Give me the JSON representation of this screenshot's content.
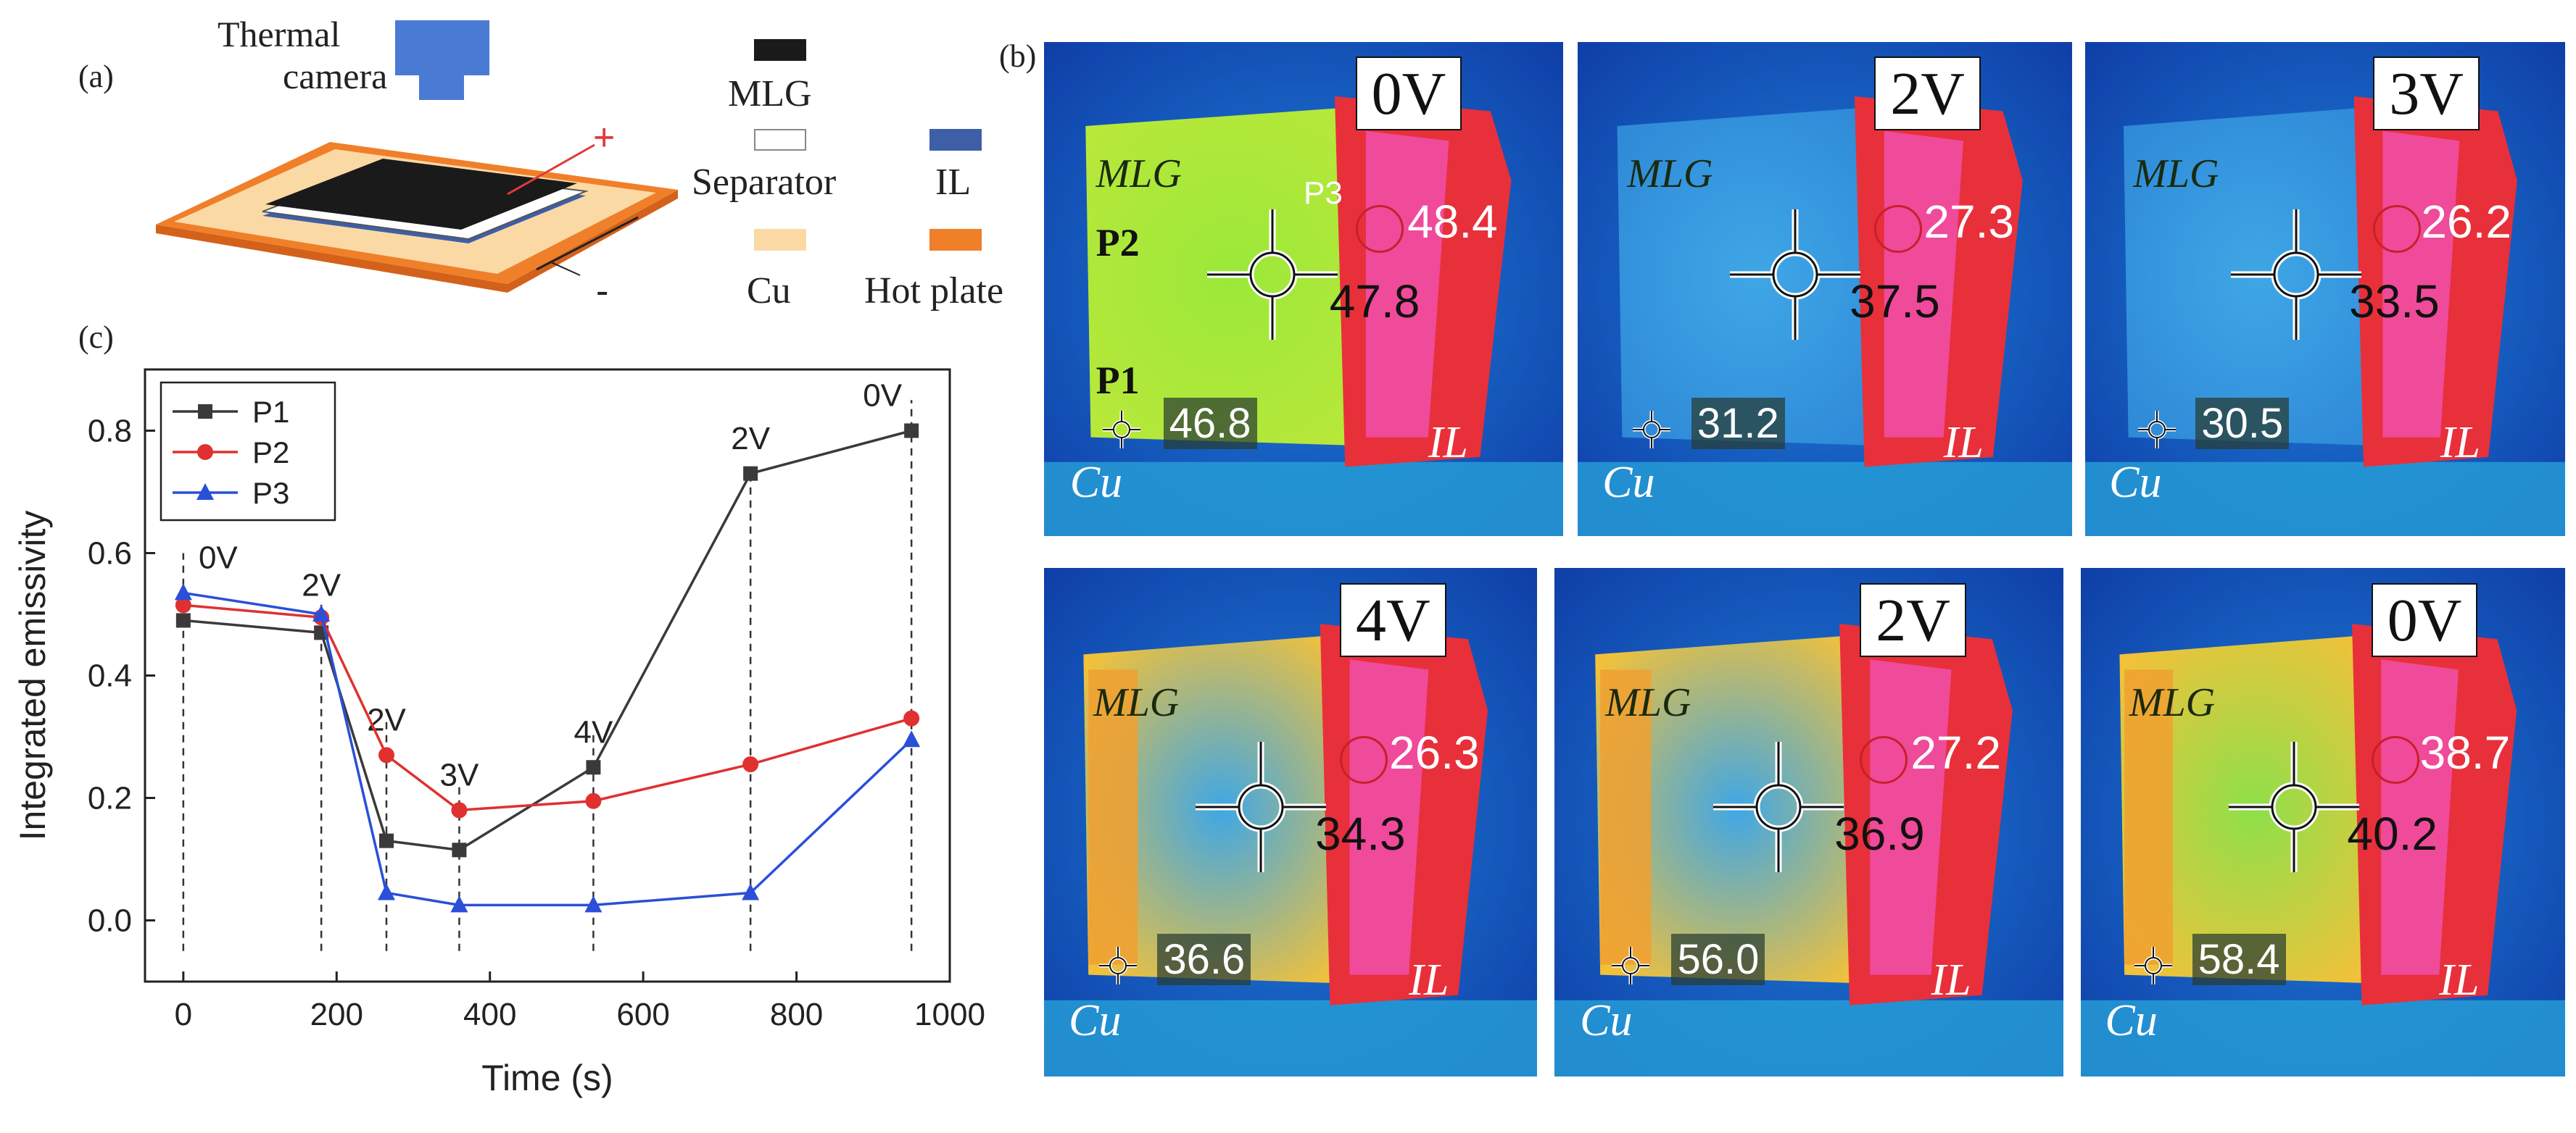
{
  "panel_a": {
    "label": "(a)",
    "camera_label_line1": "Thermal",
    "camera_label_line2": "camera",
    "plus_sign": "+",
    "minus_sign": "-",
    "legend": [
      {
        "name": "MLG",
        "color": "#1a1a1a"
      },
      {
        "name": "Separator",
        "color": "#ffffff"
      },
      {
        "name": "IL",
        "color": "#3d5fa8"
      },
      {
        "name": "Cu",
        "color": "#fbd9a5"
      },
      {
        "name": "Hot plate",
        "color": "#f07f2a"
      }
    ]
  },
  "panel_b": {
    "label": "(b)",
    "material_labels": {
      "mlg": "MLG",
      "il": "IL",
      "cu": "Cu"
    },
    "point_labels": {
      "p1": "P1",
      "p2": "P2",
      "p3": "P3"
    },
    "images": [
      {
        "voltage": "0V",
        "p3_value": "48.4",
        "p2_value": "47.8",
        "p1_value": "46.8"
      },
      {
        "voltage": "2V",
        "p3_value": "27.3",
        "p2_value": "37.5",
        "p1_value": "31.2"
      },
      {
        "voltage": "3V",
        "p3_value": "26.2",
        "p2_value": "33.5",
        "p1_value": "30.5"
      },
      {
        "voltage": "4V",
        "p3_value": "26.3",
        "p2_value": "34.3",
        "p1_value": "36.6"
      },
      {
        "voltage": "2V",
        "p3_value": "27.2",
        "p2_value": "36.9",
        "p1_value": "56.0"
      },
      {
        "voltage": "0V",
        "p3_value": "38.7",
        "p2_value": "40.2",
        "p1_value": "58.4"
      }
    ]
  },
  "panel_c": {
    "label": "(c)"
  },
  "chart_data": {
    "type": "line",
    "xlabel": "Time (s)",
    "ylabel": "Integrated emissivity",
    "xlim": [
      -50,
      1000
    ],
    "ylim": [
      -0.1,
      0.9
    ],
    "xticks": [
      0,
      200,
      400,
      600,
      800,
      1000
    ],
    "yticks": [
      0.0,
      0.2,
      0.4,
      0.6,
      0.8
    ],
    "x": [
      0,
      180,
      265,
      360,
      535,
      740,
      950
    ],
    "series": [
      {
        "name": "P1",
        "color": "#3a3a3a",
        "marker": "square",
        "values": [
          0.49,
          0.47,
          0.13,
          0.115,
          0.25,
          0.73,
          0.8
        ]
      },
      {
        "name": "P2",
        "color": "#e03030",
        "marker": "circle",
        "values": [
          0.515,
          0.495,
          0.27,
          0.18,
          0.195,
          0.255,
          0.33
        ]
      },
      {
        "name": "P3",
        "color": "#2a4fd8",
        "marker": "triangle",
        "values": [
          0.535,
          0.5,
          0.045,
          0.025,
          0.025,
          0.045,
          0.295
        ]
      }
    ],
    "annotations": [
      {
        "text": "0V",
        "x": 0
      },
      {
        "text": "2V",
        "x": 180
      },
      {
        "text": "2V",
        "x": 265
      },
      {
        "text": "3V",
        "x": 360
      },
      {
        "text": "4V",
        "x": 535
      },
      {
        "text": "2V",
        "x": 740
      },
      {
        "text": "0V",
        "x": 950
      }
    ]
  }
}
